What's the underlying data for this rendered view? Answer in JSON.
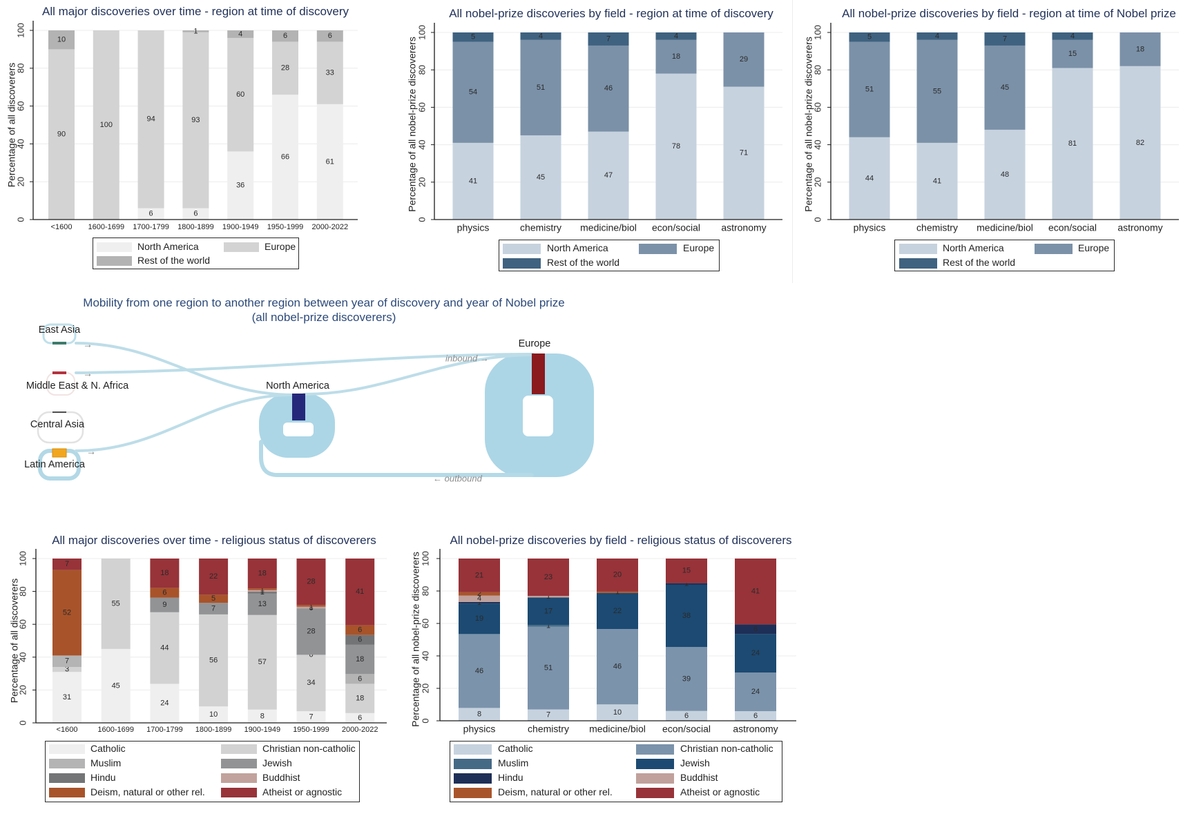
{
  "chart_data": [
    {
      "type": "bar",
      "stacked": true,
      "title": "All major discoveries over time - region at time of discovery",
      "xlabel": "",
      "ylabel": "Percentage of all discoverers",
      "ylim": [
        0,
        100
      ],
      "yticks": [
        0,
        20,
        40,
        60,
        80,
        100
      ],
      "grid": true,
      "legend_position": "bottom",
      "categories": [
        "<1600",
        "1600-1699",
        "1700-1799",
        "1800-1899",
        "1900-1949",
        "1950-1999",
        "2000-2022"
      ],
      "series": [
        {
          "name": "North America",
          "color": "#efefef",
          "values": [
            null,
            null,
            6,
            6,
            36,
            66,
            61
          ]
        },
        {
          "name": "Europe",
          "color": "#d3d3d3",
          "values": [
            90,
            100,
            94,
            93,
            60,
            28,
            33
          ]
        },
        {
          "name": "Rest of the world",
          "color": "#b3b3b3",
          "values": [
            10,
            null,
            null,
            1,
            4,
            6,
            6
          ]
        }
      ]
    },
    {
      "type": "bar",
      "stacked": true,
      "title": "All nobel-prize discoveries by field - region at time of discovery",
      "xlabel": "",
      "ylabel": "Percentage of all nobel-prize discoverers",
      "ylim": [
        0,
        100
      ],
      "yticks": [
        0,
        20,
        40,
        60,
        80,
        100
      ],
      "grid": true,
      "legend_position": "bottom",
      "categories": [
        "physics",
        "chemistry",
        "medicine/biol",
        "econ/social",
        "astronomy"
      ],
      "series": [
        {
          "name": "North America",
          "color": "#c6d2de",
          "values": [
            41,
            45,
            47,
            78,
            71
          ]
        },
        {
          "name": "Europe",
          "color": "#7b91a8",
          "values": [
            54,
            51,
            46,
            18,
            29
          ]
        },
        {
          "name": "Rest of the world",
          "color": "#3f6280",
          "values": [
            5,
            4,
            7,
            4,
            null
          ]
        }
      ]
    },
    {
      "type": "bar",
      "stacked": true,
      "title": "All nobel-prize discoveries by field - region at time of Nobel prize",
      "xlabel": "",
      "ylabel": "Percentage of all nobel-prize discoverers",
      "ylim": [
        0,
        100
      ],
      "yticks": [
        0,
        20,
        40,
        60,
        80,
        100
      ],
      "grid": true,
      "legend_position": "bottom",
      "categories": [
        "physics",
        "chemistry",
        "medicine/biol",
        "econ/social",
        "astronomy"
      ],
      "series": [
        {
          "name": "North America",
          "color": "#c6d2de",
          "values": [
            44,
            41,
            48,
            81,
            82
          ]
        },
        {
          "name": "Europe",
          "color": "#7b91a8",
          "values": [
            51,
            55,
            45,
            15,
            18
          ]
        },
        {
          "name": "Rest of the world",
          "color": "#3f6280",
          "values": [
            5,
            4,
            7,
            4,
            null
          ]
        }
      ]
    },
    {
      "type": "bar",
      "stacked": true,
      "title": "All major discoveries over time - religious status of discoverers",
      "xlabel": "",
      "ylabel": "Percentage of all discoverers",
      "ylim": [
        0,
        100
      ],
      "yticks": [
        0,
        20,
        40,
        60,
        80,
        100
      ],
      "grid": true,
      "legend_position": "bottom",
      "categories": [
        "<1600",
        "1600-1699",
        "1700-1799",
        "1800-1899",
        "1900-1949",
        "1950-1999",
        "2000-2022"
      ],
      "series": [
        {
          "name": "Catholic",
          "color": "#efefef",
          "values": [
            31,
            45,
            24,
            10,
            8,
            7,
            6
          ]
        },
        {
          "name": "Christian non-catholic",
          "color": "#d2d2d2",
          "values": [
            3,
            55,
            44,
            56,
            57,
            34,
            18
          ]
        },
        {
          "name": "Muslim",
          "color": "#b4b4b4",
          "values": [
            7,
            null,
            null,
            null,
            null,
            0,
            6
          ]
        },
        {
          "name": "Jewish",
          "color": "#929395",
          "values": [
            null,
            null,
            9,
            7,
            13,
            28,
            18
          ]
        },
        {
          "name": "Hindu",
          "color": "#737476",
          "values": [
            null,
            null,
            null,
            null,
            1,
            0,
            6
          ]
        },
        {
          "name": "Buddhist",
          "color": "#c2a29c",
          "values": [
            null,
            null,
            null,
            null,
            1,
            1,
            null
          ]
        },
        {
          "name": "Deism, natural or other rel.",
          "color": "#a8532a",
          "values": [
            52,
            null,
            6,
            5,
            1,
            1,
            6
          ]
        },
        {
          "name": "Atheist or agnostic",
          "color": "#973339",
          "values": [
            7,
            null,
            18,
            22,
            18,
            28,
            41
          ]
        }
      ]
    },
    {
      "type": "bar",
      "stacked": true,
      "title": "All nobel-prize discoveries by field - religious status of discoverers",
      "xlabel": "",
      "ylabel": "Percentage of all nobel-prize discoverers",
      "ylim": [
        0,
        100
      ],
      "yticks": [
        0,
        20,
        40,
        60,
        80,
        100
      ],
      "grid": true,
      "legend_position": "bottom",
      "categories": [
        "physics",
        "chemistry",
        "medicine/biol",
        "econ/social",
        "astronomy"
      ],
      "series": [
        {
          "name": "Catholic",
          "color": "#c6d2de",
          "values": [
            8,
            7,
            10,
            6,
            6
          ]
        },
        {
          "name": "Christian non-catholic",
          "color": "#7b93ab",
          "values": [
            46,
            51,
            46,
            39,
            24
          ]
        },
        {
          "name": "Muslim",
          "color": "#456a86",
          "values": [
            null,
            1,
            null,
            null,
            null
          ]
        },
        {
          "name": "Jewish",
          "color": "#1c4a72",
          "values": [
            19,
            17,
            22,
            38,
            24
          ]
        },
        {
          "name": "Hindu",
          "color": "#1e2f57",
          "values": [
            1,
            null,
            null,
            1,
            6
          ]
        },
        {
          "name": "Buddhist",
          "color": "#c0a19c",
          "values": [
            4,
            1,
            null,
            null,
            null
          ]
        },
        {
          "name": "Deism, natural or other rel.",
          "color": "#a9552b",
          "values": [
            2,
            null,
            1,
            null,
            null
          ]
        },
        {
          "name": "Atheist or agnostic",
          "color": "#973339",
          "values": [
            21,
            23,
            20,
            15,
            41
          ]
        }
      ]
    }
  ],
  "mobility": {
    "title": [
      "Mobility from one region to another region between year of discovery and year of Nobel prize",
      "(all nobel-prize discoverers)"
    ],
    "nodes": [
      {
        "name": "East Asia",
        "color": "#3e7b6b"
      },
      {
        "name": "Middle East & N. Africa",
        "color": "#b5323f"
      },
      {
        "name": "Central Asia",
        "color": "#505050"
      },
      {
        "name": "Latin America",
        "color": "#f2a61e"
      },
      {
        "name": "North America",
        "color": "#25287a"
      },
      {
        "name": "Europe",
        "color": "#8a1a1e"
      }
    ],
    "flows": [
      {
        "from": "East Asia",
        "to": "North America"
      },
      {
        "from": "Middle East & N. Africa",
        "to": "Europe"
      },
      {
        "from": "Latin America",
        "to": "North America"
      },
      {
        "from": "North America",
        "to": "Europe"
      },
      {
        "from": "Europe",
        "to": "North America"
      }
    ],
    "flow_color": "#acd6e6",
    "inbound_label": "inbound →",
    "outbound_label": "← outbound",
    "flow_arrow": "→"
  }
}
